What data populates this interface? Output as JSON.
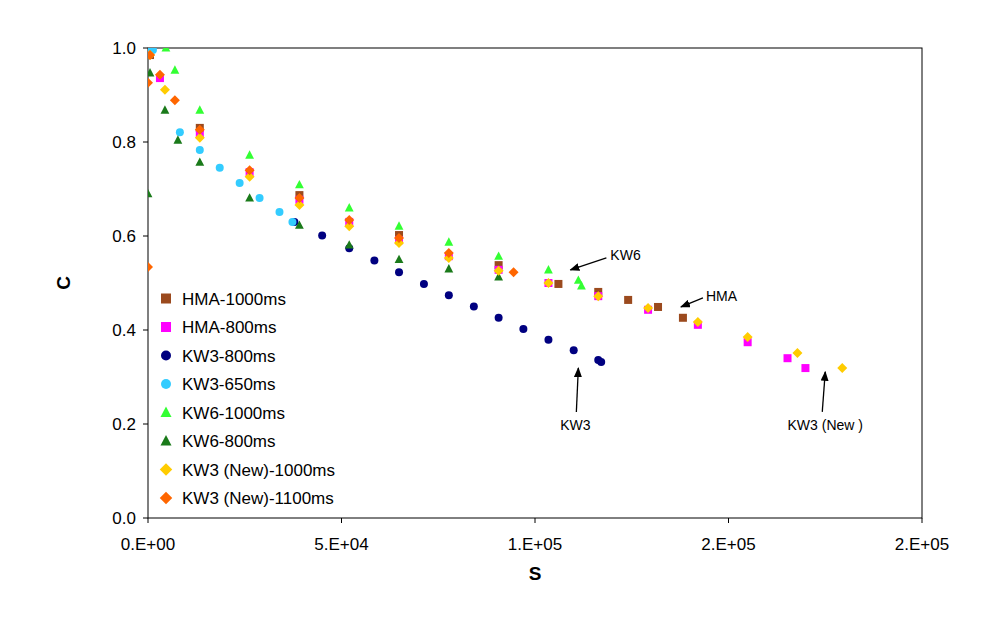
{
  "chart_data": {
    "type": "scatter",
    "x_label": "S",
    "y_label": "C",
    "xlim": [
      0,
      200000
    ],
    "ylim": [
      0,
      1
    ],
    "xticks": [
      {
        "value": 0,
        "label": "0.E+00"
      },
      {
        "value": 50000,
        "label": "5.E+04"
      },
      {
        "value": 100000,
        "label": "1.E+05"
      },
      {
        "value": 150000,
        "label": "2.E+05"
      },
      {
        "value": 200000,
        "label": "2.E+05"
      }
    ],
    "yticks": [
      {
        "value": 0,
        "label": "0.0"
      },
      0.2,
      0.4,
      0.6,
      0.8,
      {
        "value": 1,
        "label": "1.0"
      }
    ],
    "grid": false,
    "legend": "lower left",
    "series": [
      {
        "name": "HMA-1000ms",
        "color": "#9b4a1e",
        "marker": "square",
        "x": [
          515,
          13385,
          39125,
          64865,
          90600,
          106050,
          116345,
          124070,
          131790,
          138225
        ],
        "values": [
          0.985,
          0.83,
          0.687,
          0.602,
          0.538,
          0.498,
          0.481,
          0.464,
          0.449,
          0.426
        ]
      },
      {
        "name": "HMA-800ms",
        "color": "#ff00ff",
        "marker": "square",
        "x": [
          515,
          3089,
          13385,
          26255,
          39125,
          52000,
          64865,
          77735,
          90600,
          103475,
          116345,
          129220,
          142085,
          154950,
          165250,
          169880
        ],
        "values": [
          0.996,
          0.936,
          0.819,
          0.736,
          0.677,
          0.63,
          0.591,
          0.557,
          0.528,
          0.5,
          0.472,
          0.443,
          0.411,
          0.374,
          0.34,
          0.319
        ]
      },
      {
        "name": "KW3-800ms",
        "color": "#000080",
        "marker": "circle",
        "x": [
          37840,
          45000,
          52000,
          58500,
          64865,
          71300,
          77735,
          84200,
          90600,
          97000,
          103475,
          110000,
          116345,
          117100
        ],
        "values": [
          0.63,
          0.601,
          0.574,
          0.548,
          0.523,
          0.498,
          0.474,
          0.45,
          0.426,
          0.402,
          0.379,
          0.357,
          0.336,
          0.332
        ]
      },
      {
        "name": "KW3-650ms",
        "color": "#33ccff",
        "marker": "circle",
        "x": [
          500,
          1270,
          8237,
          13385,
          18533,
          23680,
          28830,
          33976,
          37320
        ],
        "values": [
          1.0,
          0.996,
          0.821,
          0.783,
          0.745,
          0.713,
          0.681,
          0.651,
          0.63
        ]
      },
      {
        "name": "KW6-1000ms",
        "color": "#33ff33",
        "marker": "triangle",
        "x": [
          4633,
          6950,
          13385,
          26255,
          39125,
          52000,
          64865,
          77735,
          90600,
          103475,
          111200,
          112000
        ],
        "values": [
          1.0,
          0.953,
          0.868,
          0.772,
          0.709,
          0.66,
          0.621,
          0.587,
          0.557,
          0.528,
          0.506,
          0.494
        ]
      },
      {
        "name": "KW6-800ms",
        "color": "#1a7a1a",
        "marker": "triangle",
        "x": [
          0,
          515,
          4376,
          7722,
          13385,
          26255,
          39125,
          52000,
          64865,
          77735,
          90600
        ],
        "values": [
          0.69,
          0.947,
          0.868,
          0.804,
          0.757,
          0.681,
          0.623,
          0.581,
          0.55,
          0.53,
          0.513
        ]
      },
      {
        "name": "KW3 (New)-1000ms",
        "color": "#ffcc00",
        "marker": "diamond",
        "x": [
          515,
          4376,
          13385,
          26255,
          39125,
          52000,
          64865,
          77735,
          90600,
          103475,
          116345,
          129220,
          142085,
          154950,
          167820,
          179400
        ],
        "values": [
          0.985,
          0.911,
          0.809,
          0.726,
          0.666,
          0.621,
          0.585,
          0.553,
          0.526,
          0.5,
          0.472,
          0.447,
          0.417,
          0.385,
          0.351,
          0.319
        ]
      },
      {
        "name": "KW3 (New)-1100ms",
        "color": "#ff6600",
        "marker": "diamond",
        "x": [
          0,
          0,
          515,
          3089,
          6950,
          13385,
          26255,
          39125,
          52000,
          64865,
          77735,
          94460
        ],
        "values": [
          0.534,
          0.926,
          0.985,
          0.943,
          0.889,
          0.826,
          0.74,
          0.681,
          0.634,
          0.596,
          0.564,
          0.523
        ]
      }
    ],
    "annotations": [
      {
        "text": "KW6",
        "x": 109140,
        "y": 0.528
      },
      {
        "text": "HMA",
        "x": 137710,
        "y": 0.449
      },
      {
        "text": "KW3",
        "x": 111200,
        "y": 0.319
      },
      {
        "text": "KW3 (New )",
        "x": 175000,
        "y": 0.311
      }
    ]
  }
}
